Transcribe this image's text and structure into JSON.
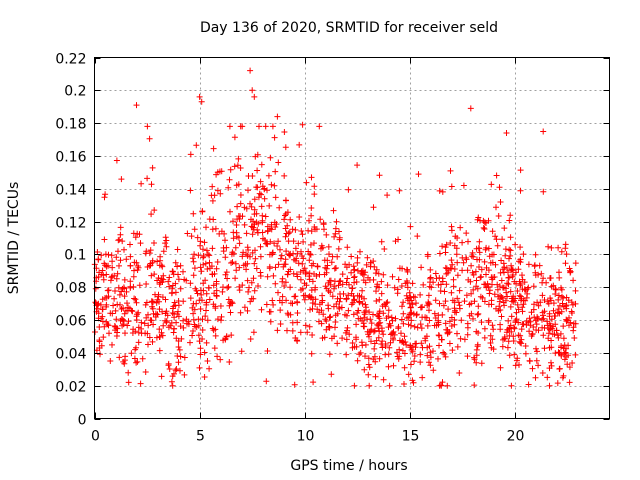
{
  "chart_data": {
    "type": "scatter",
    "title": "Day 136 of 2020, SRMTID for receiver seld",
    "xlabel": "GPS time / hours",
    "ylabel": "SRMTID / TECUs",
    "xlim": [
      0,
      24.5
    ],
    "ylim": [
      0,
      0.22
    ],
    "xticks": [
      0,
      5,
      10,
      15,
      20
    ],
    "xtick_labels": [
      "0",
      "5",
      "10",
      "15",
      "20"
    ],
    "yticks": [
      0,
      0.02,
      0.04,
      0.06,
      0.08,
      0.1,
      0.12,
      0.14,
      0.16,
      0.18,
      0.2,
      0.22
    ],
    "ytick_labels": [
      "0",
      "0.02",
      "0.04",
      "0.06",
      "0.08",
      "0.1",
      "0.12",
      "0.14",
      "0.16",
      "0.18",
      "0.2",
      "0.22"
    ],
    "grid": true,
    "marker": "+",
    "color": "#ff0000",
    "data_range_hours": [
      0,
      22.9
    ],
    "point_count": 1800,
    "trend": {
      "hours": [
        0,
        2,
        4,
        6,
        8,
        10,
        12,
        14,
        16,
        18,
        20,
        22
      ],
      "center": [
        0.075,
        0.072,
        0.062,
        0.095,
        0.11,
        0.085,
        0.075,
        0.06,
        0.06,
        0.085,
        0.07,
        0.06
      ],
      "spread": [
        0.02,
        0.025,
        0.02,
        0.03,
        0.03,
        0.025,
        0.02,
        0.02,
        0.02,
        0.025,
        0.02,
        0.02
      ]
    },
    "notable_points": [
      {
        "x": 2.0,
        "y": 0.191
      },
      {
        "x": 5.0,
        "y": 0.196
      },
      {
        "x": 5.1,
        "y": 0.193
      },
      {
        "x": 7.4,
        "y": 0.212
      },
      {
        "x": 7.5,
        "y": 0.2
      },
      {
        "x": 7.6,
        "y": 0.196
      },
      {
        "x": 8.7,
        "y": 0.184
      },
      {
        "x": 9.9,
        "y": 0.179
      },
      {
        "x": 17.9,
        "y": 0.189
      },
      {
        "x": 19.6,
        "y": 0.174
      },
      {
        "x": 16.5,
        "y": 0.02
      },
      {
        "x": 22.6,
        "y": 0.022
      }
    ]
  }
}
